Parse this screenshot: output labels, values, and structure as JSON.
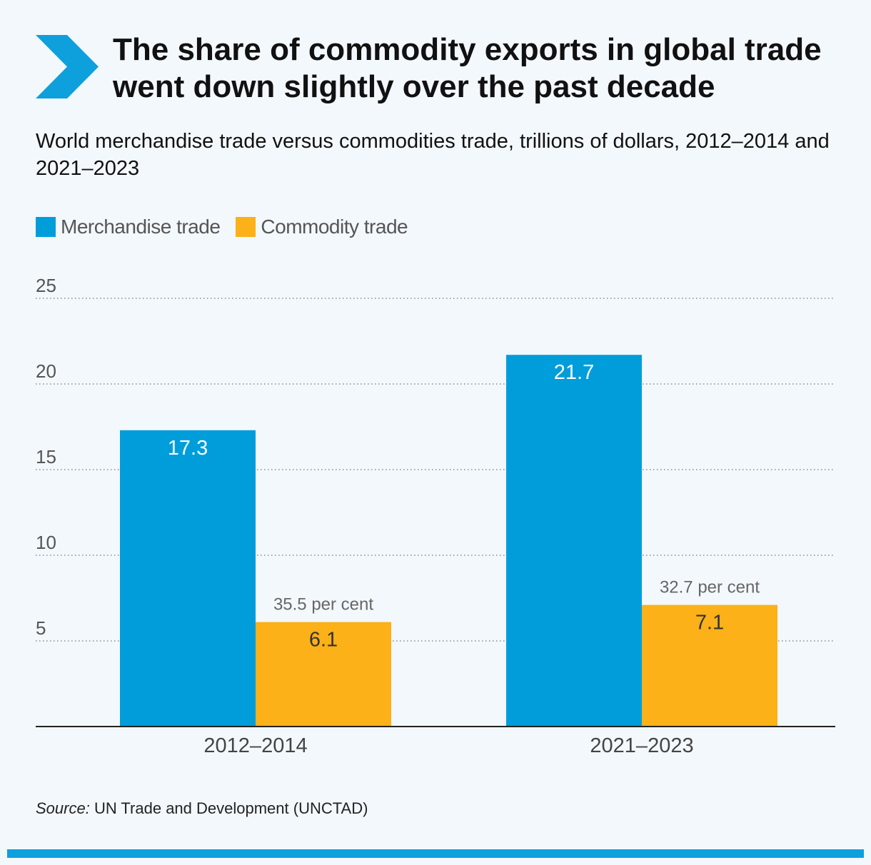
{
  "header": {
    "title": "The share of commodity exports in global trade went down slightly over the past decade",
    "subtitle": "World merchandise trade versus commodities trade, trillions of dollars, 2012–2014 and 2021–2023",
    "icon": "chevron-right-icon"
  },
  "legend": {
    "items": [
      {
        "label": "Merchandise trade",
        "color": "#009ddb"
      },
      {
        "label": "Commodity trade",
        "color": "#fbb117"
      }
    ]
  },
  "chart_data": {
    "type": "bar",
    "categories": [
      "2012–2014",
      "2021–2023"
    ],
    "series": [
      {
        "name": "Merchandise trade",
        "values": [
          17.3,
          21.7
        ],
        "color": "#009ddb"
      },
      {
        "name": "Commodity trade",
        "values": [
          6.1,
          7.1
        ],
        "color": "#fbb117"
      }
    ],
    "value_labels": [
      [
        "17.3",
        "21.7"
      ],
      [
        "6.1",
        "7.1"
      ]
    ],
    "annotations": [
      {
        "category": "2012–2014",
        "series": "Commodity trade",
        "text": "35.5 per cent"
      },
      {
        "category": "2021–2023",
        "series": "Commodity trade",
        "text": "32.7 per cent"
      }
    ],
    "ylim": [
      0,
      25
    ],
    "yticks": [
      5,
      10,
      15,
      20,
      25
    ],
    "grid": true,
    "legend_position": "top-left"
  },
  "footer": {
    "source_label": "Source:",
    "source_text": " UN Trade and Development (UNCTAD)"
  },
  "colors": {
    "accent": "#0ea0dc",
    "background": "#f3f8fd"
  }
}
